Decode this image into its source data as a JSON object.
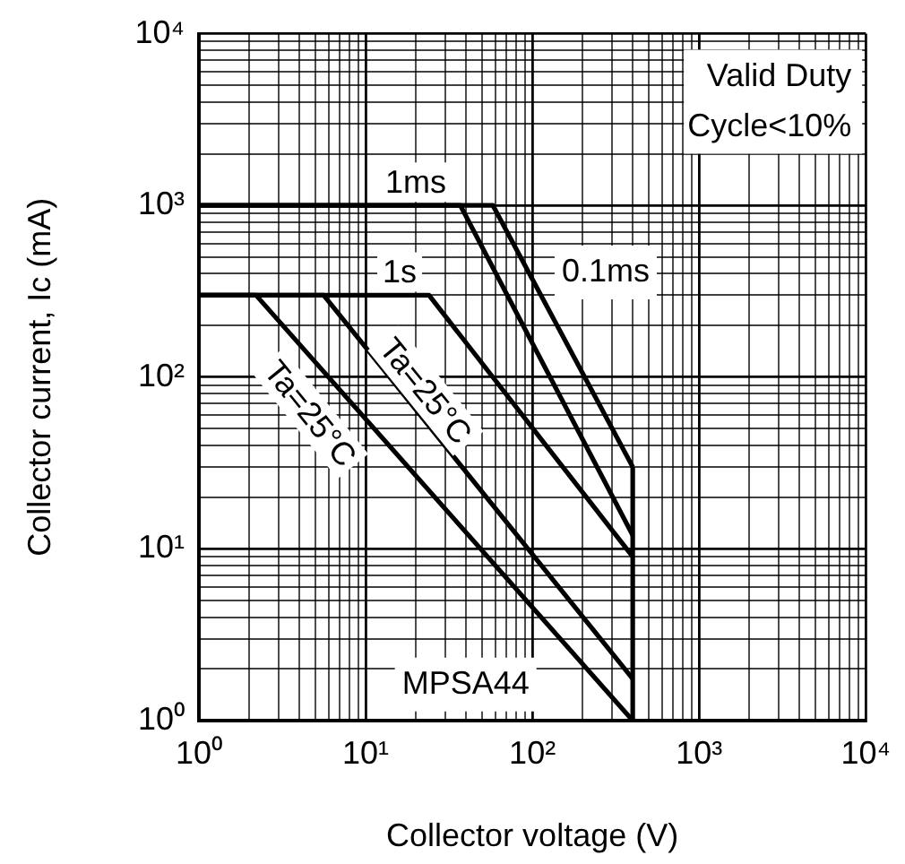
{
  "chart_data": {
    "type": "line",
    "xlabel": "Collector voltage (V)",
    "ylabel": "Collector current, Ic (mA)",
    "log": "xy",
    "grid": true,
    "legend": false,
    "marker": "none",
    "line_style": "solid",
    "xlim": [
      1,
      10000
    ],
    "ylim": [
      1,
      10000
    ],
    "xticks": [
      {
        "value": 1,
        "label": "10⁰"
      },
      {
        "value": 2,
        "label": null
      },
      {
        "value": 3,
        "label": null
      },
      {
        "value": 4,
        "label": null
      },
      {
        "value": 5,
        "label": null
      },
      {
        "value": 6,
        "label": null
      },
      {
        "value": 7,
        "label": null
      },
      {
        "value": 8,
        "label": null
      },
      {
        "value": 9,
        "label": null
      },
      {
        "value": 10,
        "label": "10¹"
      },
      {
        "value": 20,
        "label": null
      },
      {
        "value": 30,
        "label": null
      },
      {
        "value": 40,
        "label": null
      },
      {
        "value": 50,
        "label": null
      },
      {
        "value": 60,
        "label": null
      },
      {
        "value": 70,
        "label": null
      },
      {
        "value": 80,
        "label": null
      },
      {
        "value": 90,
        "label": null
      },
      {
        "value": 100,
        "label": "10²"
      },
      {
        "value": 200,
        "label": null
      },
      {
        "value": 300,
        "label": null
      },
      {
        "value": 400,
        "label": null
      },
      {
        "value": 500,
        "label": null
      },
      {
        "value": 600,
        "label": null
      },
      {
        "value": 700,
        "label": null
      },
      {
        "value": 800,
        "label": null
      },
      {
        "value": 900,
        "label": null
      },
      {
        "value": 1000,
        "label": "10³"
      },
      {
        "value": 2000,
        "label": null
      },
      {
        "value": 3000,
        "label": null
      },
      {
        "value": 4000,
        "label": null
      },
      {
        "value": 5000,
        "label": null
      },
      {
        "value": 6000,
        "label": null
      },
      {
        "value": 7000,
        "label": null
      },
      {
        "value": 8000,
        "label": null
      },
      {
        "value": 9000,
        "label": null
      },
      {
        "value": 10000,
        "label": "10⁴"
      }
    ],
    "yticks": [
      {
        "value": 1,
        "label": "10⁰"
      },
      {
        "value": 2,
        "label": null
      },
      {
        "value": 3,
        "label": null
      },
      {
        "value": 4,
        "label": null
      },
      {
        "value": 5,
        "label": null
      },
      {
        "value": 6,
        "label": null
      },
      {
        "value": 7,
        "label": null
      },
      {
        "value": 8,
        "label": null
      },
      {
        "value": 9,
        "label": null
      },
      {
        "value": 10,
        "label": "10¹"
      },
      {
        "value": 20,
        "label": null
      },
      {
        "value": 30,
        "label": null
      },
      {
        "value": 40,
        "label": null
      },
      {
        "value": 50,
        "label": null
      },
      {
        "value": 60,
        "label": null
      },
      {
        "value": 70,
        "label": null
      },
      {
        "value": 80,
        "label": null
      },
      {
        "value": 90,
        "label": null
      },
      {
        "value": 100,
        "label": "10²"
      },
      {
        "value": 200,
        "label": null
      },
      {
        "value": 300,
        "label": null
      },
      {
        "value": 400,
        "label": null
      },
      {
        "value": 500,
        "label": null
      },
      {
        "value": 600,
        "label": null
      },
      {
        "value": 700,
        "label": null
      },
      {
        "value": 800,
        "label": null
      },
      {
        "value": 900,
        "label": null
      },
      {
        "value": 1000,
        "label": "10³"
      },
      {
        "value": 2000,
        "label": null
      },
      {
        "value": 3000,
        "label": null
      },
      {
        "value": 4000,
        "label": null
      },
      {
        "value": 5000,
        "label": null
      },
      {
        "value": 6000,
        "label": null
      },
      {
        "value": 7000,
        "label": null
      },
      {
        "value": 8000,
        "label": null
      },
      {
        "value": 9000,
        "label": null
      },
      {
        "value": 10000,
        "label": "10⁴"
      }
    ],
    "series": [
      {
        "color": "#000000",
        "x": [
          1,
          58,
          400
        ],
        "values": [
          1000,
          1000,
          30
        ]
      },
      {
        "color": "#000000",
        "x": [
          1,
          37,
          400
        ],
        "values": [
          1000,
          1000,
          12
        ]
      },
      {
        "color": "#000000",
        "x": [
          1,
          24,
          400
        ],
        "values": [
          300,
          300,
          9
        ]
      },
      {
        "color": "#000000",
        "x": [
          1,
          5.6,
          400
        ],
        "values": [
          300,
          300,
          1.75
        ]
      },
      {
        "color": "#000000",
        "x": [
          1,
          2.2,
          400
        ],
        "values": [
          300,
          300,
          1
        ]
      },
      {
        "color": "#000000",
        "x": [
          400,
          400
        ],
        "values": [
          1,
          30
        ]
      }
    ],
    "annotations": [
      "Valid Duty Cycle<10%",
      "MPSA44",
      "0.1ms",
      "Ta=25°C",
      "Ta=25°C",
      {
        "text": "1ms",
        "x": 20,
        "y": 1000
      },
      {
        "text": "1s",
        "x": 16,
        "y": 300
      }
    ]
  }
}
